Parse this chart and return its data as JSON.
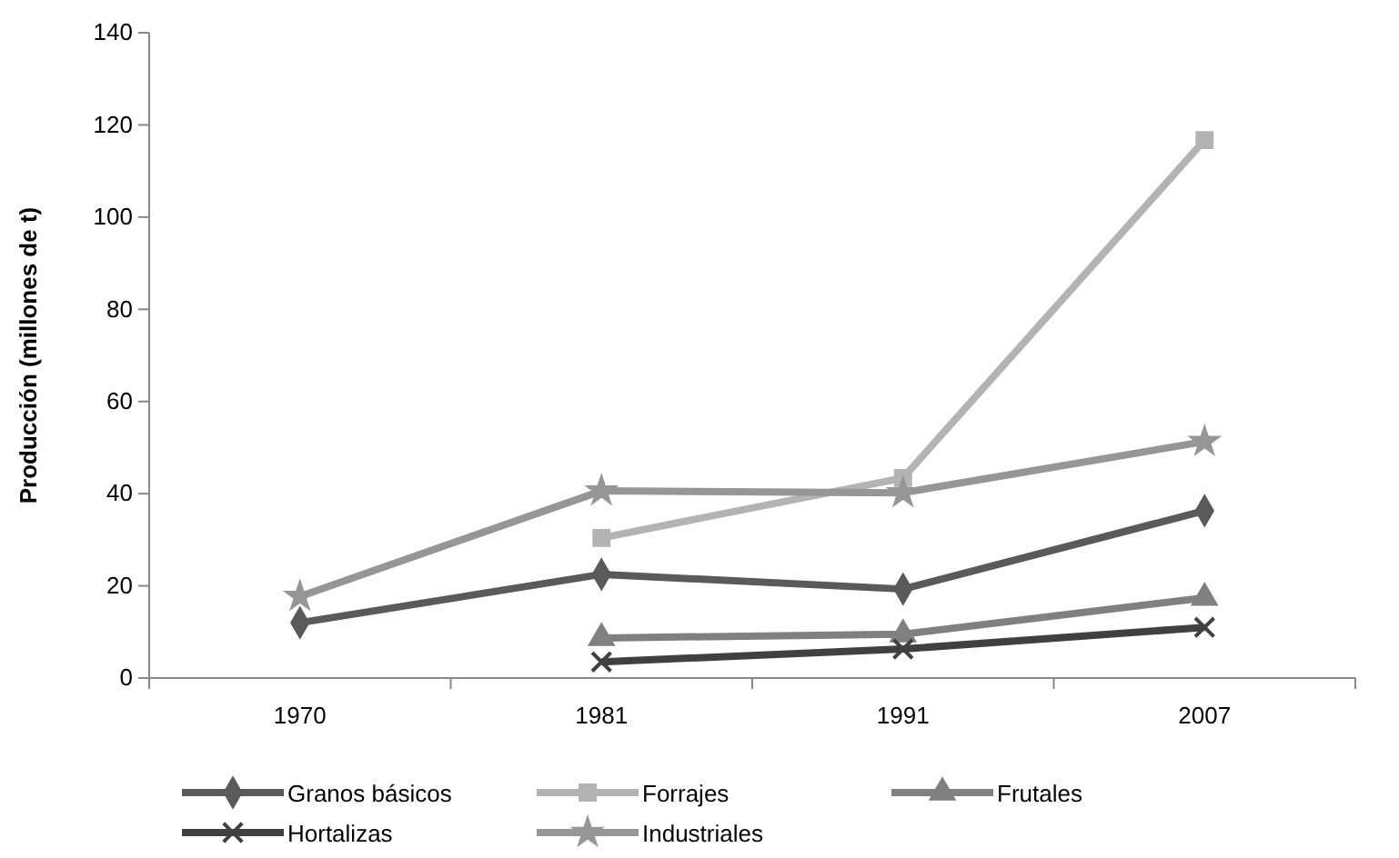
{
  "chart_data": {
    "type": "line",
    "ylabel": "Producción (millones de t)",
    "categories": [
      "1970",
      "1981",
      "1991",
      "2007"
    ],
    "ylim": [
      0,
      140
    ],
    "yticks": [
      0,
      20,
      40,
      60,
      80,
      100,
      120,
      140
    ],
    "grid": false,
    "legend": "bottom",
    "line_style": "solid",
    "series": [
      {
        "name": "Granos básicos",
        "color": "#5a5a5a",
        "marker": "diamond",
        "values": [
          12,
          22.5,
          19.3,
          36.3
        ]
      },
      {
        "name": "Forrajes",
        "color": "#b3b3b3",
        "marker": "square",
        "values": [
          null,
          30.4,
          43.4,
          116.7
        ]
      },
      {
        "name": "Frutales",
        "color": "#808080",
        "marker": "triangle",
        "values": [
          null,
          8.7,
          9.5,
          17.4
        ]
      },
      {
        "name": "Hortalizas",
        "color": "#404040",
        "marker": "cross",
        "values": [
          null,
          3.5,
          6.3,
          11
        ]
      },
      {
        "name": "Industriales",
        "color": "#969696",
        "marker": "star",
        "values": [
          17.7,
          40.6,
          40.2,
          51.3
        ]
      }
    ]
  }
}
